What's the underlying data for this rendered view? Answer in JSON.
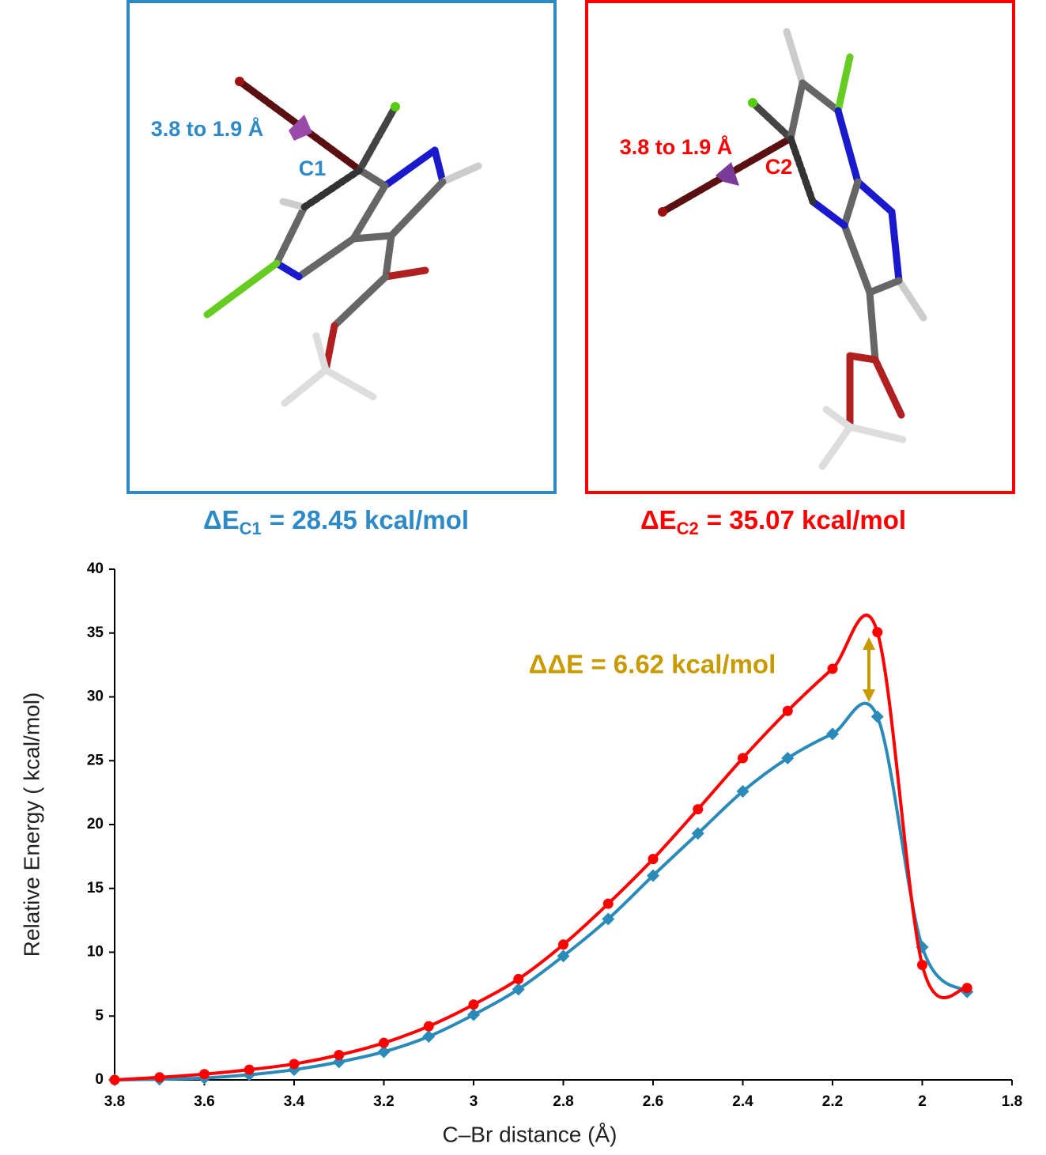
{
  "panels": [
    {
      "distance_label": "3.8 to 1.9 Å",
      "atom_label": "C1",
      "energy_symbol": "ΔE",
      "energy_subscript": "C1",
      "energy_text": "= 28.45 kcal/mol"
    },
    {
      "distance_label": "3.8 to 1.9 Å",
      "atom_label": "C2",
      "energy_symbol": "ΔE",
      "energy_subscript": "C2",
      "energy_text": "= 35.07 kcal/mol"
    }
  ],
  "chart_data": {
    "type": "line",
    "x_label": "C–Br distance (Å)",
    "y_label": "Relative Energy ( kcal/mol)",
    "annotation": "ΔΔE = 6.62 kcal/mol",
    "x": [
      3.8,
      3.7,
      3.6,
      3.5,
      3.4,
      3.3,
      3.2,
      3.1,
      3.0,
      2.9,
      2.8,
      2.7,
      2.6,
      2.5,
      2.4,
      2.3,
      2.2,
      2.1,
      2.0,
      1.9
    ],
    "series": [
      {
        "color": "#2a8ab8",
        "marker": "diamond",
        "values": [
          0,
          0.05,
          0.15,
          0.4,
          0.8,
          1.4,
          2.2,
          3.4,
          5.1,
          7.1,
          9.7,
          12.6,
          16.0,
          19.3,
          22.6,
          25.2,
          27.1,
          28.45,
          10.4,
          6.9
        ]
      },
      {
        "color": "#ff0000",
        "marker": "circle",
        "values": [
          0,
          0.2,
          0.45,
          0.8,
          1.25,
          1.95,
          2.9,
          4.2,
          5.9,
          7.9,
          10.6,
          13.8,
          17.3,
          21.2,
          25.2,
          28.9,
          32.2,
          35.07,
          9.0,
          7.2
        ]
      }
    ],
    "xlim": [
      3.8,
      1.8
    ],
    "xticks": [
      3.8,
      3.6,
      3.4,
      3.2,
      3,
      2.8,
      2.6,
      2.4,
      2.2,
      2,
      1.8
    ],
    "ylim": [
      0,
      40
    ],
    "yticks": [
      0,
      5,
      10,
      15,
      20,
      25,
      30,
      35,
      40
    ]
  }
}
